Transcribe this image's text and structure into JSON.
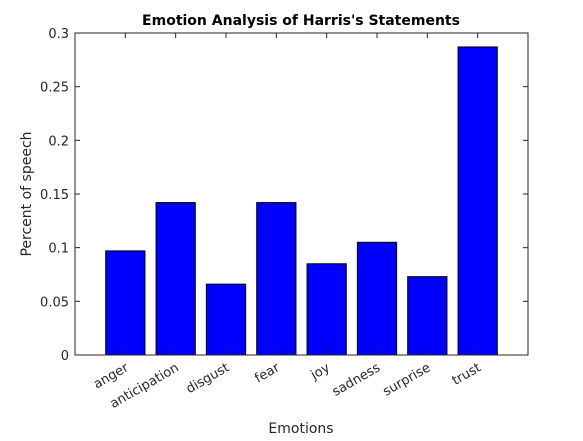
{
  "chart_data": {
    "type": "bar",
    "title": "Emotion Analysis of Harris's Statements",
    "xlabel": "Emotions",
    "ylabel": "Percent of speech",
    "categories": [
      "anger",
      "anticipation",
      "disgust",
      "fear",
      "joy",
      "sadness",
      "surprise",
      "trust"
    ],
    "values": [
      0.097,
      0.142,
      0.066,
      0.142,
      0.085,
      0.105,
      0.073,
      0.287
    ],
    "ylim": [
      0,
      0.3
    ],
    "yticks": [
      0,
      0.05,
      0.1,
      0.15,
      0.2,
      0.25,
      0.3
    ],
    "ytick_labels": [
      "0",
      "0.05",
      "0.1",
      "0.15",
      "0.2",
      "0.25",
      "0.3"
    ],
    "grid": false,
    "bar_color": "#0000ff",
    "edge_color": "#000000"
  }
}
